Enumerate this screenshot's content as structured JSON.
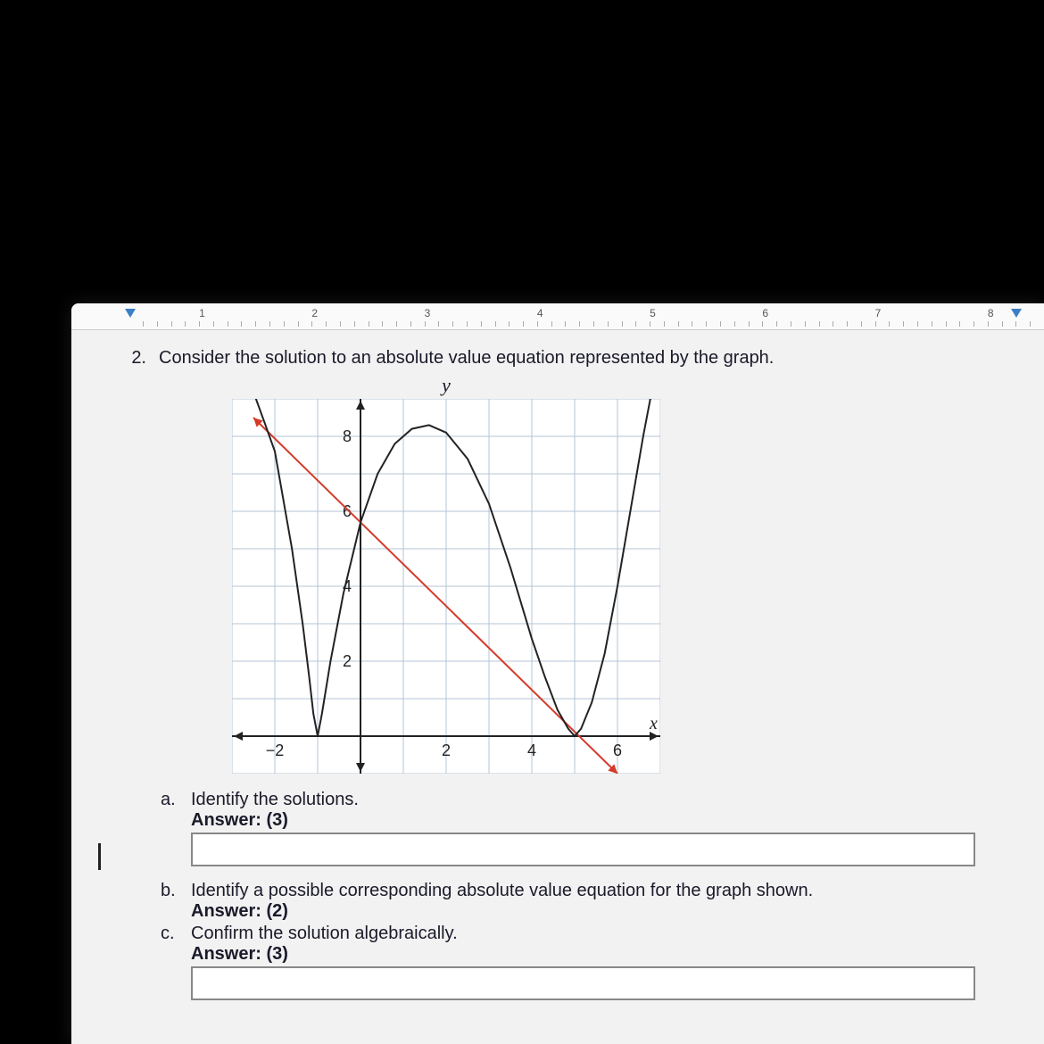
{
  "ruler": {
    "marks": [
      "1",
      "2",
      "3",
      "4",
      "5",
      "6",
      "7",
      "8"
    ]
  },
  "question": {
    "number": "2.",
    "prompt": "Consider the solution to an absolute value equation represented by the graph."
  },
  "chart": {
    "type": "line",
    "y_axis_label": "y",
    "x_axis_label": "x",
    "xlim": [
      -3,
      7
    ],
    "ylim": [
      -1,
      9
    ],
    "xtick_step": 2,
    "ytick_step": 2,
    "x_ticks": [
      -2,
      2,
      4,
      6
    ],
    "y_ticks": [
      2,
      4,
      6,
      8
    ],
    "grid_color": "#b5c4d6",
    "background_color": "#ffffff",
    "axis_color": "#222",
    "line_curve": {
      "color": "#222",
      "width": 2,
      "points": [
        [
          -2.6,
          9.5
        ],
        [
          -2.25,
          8.4
        ],
        [
          -2,
          7.6
        ],
        [
          -1.6,
          5
        ],
        [
          -1.35,
          3
        ],
        [
          -1.2,
          1.6
        ],
        [
          -1.1,
          0.6
        ],
        [
          -1,
          0
        ],
        [
          -0.9,
          0.6
        ],
        [
          -0.7,
          2
        ],
        [
          -0.4,
          3.8
        ],
        [
          0,
          5.7
        ],
        [
          0.4,
          7
        ],
        [
          0.8,
          7.8
        ],
        [
          1.2,
          8.2
        ],
        [
          1.6,
          8.3
        ],
        [
          2,
          8.1
        ],
        [
          2.5,
          7.4
        ],
        [
          3,
          6.2
        ],
        [
          3.5,
          4.5
        ],
        [
          4,
          2.6
        ],
        [
          4.3,
          1.6
        ],
        [
          4.6,
          0.7
        ],
        [
          4.85,
          0.2
        ],
        [
          5,
          0
        ],
        [
          5.15,
          0.2
        ],
        [
          5.4,
          0.9
        ],
        [
          5.7,
          2.2
        ],
        [
          6,
          4
        ],
        [
          6.3,
          6
        ],
        [
          6.6,
          8
        ],
        [
          6.85,
          9.5
        ]
      ]
    },
    "line_straight": {
      "color": "#d43a2a",
      "width": 2,
      "points": [
        [
          -2.5,
          8.5
        ],
        [
          6,
          -1
        ]
      ]
    }
  },
  "parts": {
    "a": {
      "label": "a.",
      "text": "Identify the solutions.",
      "answer": "Answer: (3)"
    },
    "b": {
      "label": "b.",
      "text": "Identify a possible corresponding absolute value equation for the graph shown.",
      "answer": "Answer: (2)"
    },
    "c": {
      "label": "c.",
      "text": "Confirm the solution algebraically.",
      "answer": "Answer: (3)"
    }
  }
}
